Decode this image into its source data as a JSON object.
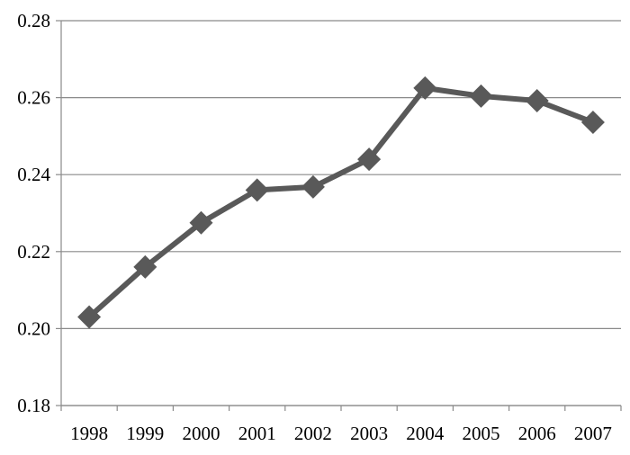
{
  "chart_data": {
    "type": "line",
    "title": "",
    "xlabel": "",
    "ylabel": "",
    "categories": [
      "1998",
      "1999",
      "2000",
      "2001",
      "2002",
      "2003",
      "2004",
      "2005",
      "2006",
      "2007"
    ],
    "series": [
      {
        "values": [
          0.203,
          0.216,
          0.2275,
          0.236,
          0.2368,
          0.244,
          0.2625,
          0.2604,
          0.2592,
          0.2536
        ],
        "color": "#595959",
        "marker": "diamond"
      }
    ],
    "ylim": [
      0.18,
      0.28
    ],
    "yticks": [
      "0.18",
      "0.20",
      "0.22",
      "0.24",
      "0.26",
      "0.28"
    ],
    "grid": true,
    "legend": "none"
  }
}
